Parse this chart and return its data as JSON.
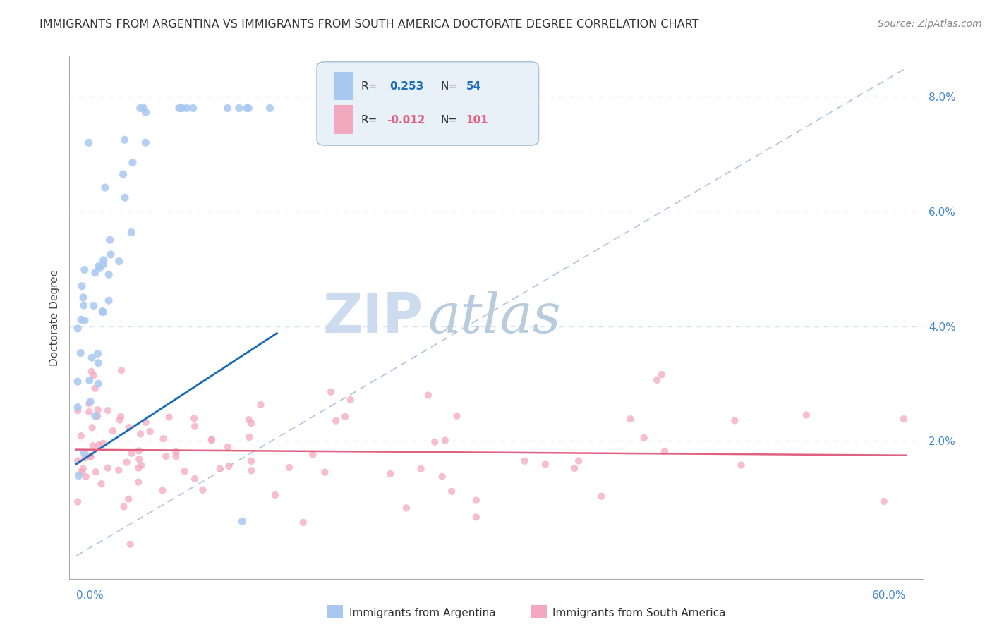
{
  "title": "IMMIGRANTS FROM ARGENTINA VS IMMIGRANTS FROM SOUTH AMERICA DOCTORATE DEGREE CORRELATION CHART",
  "source": "Source: ZipAtlas.com",
  "ylabel": "Doctorate Degree",
  "y_tick_labels": [
    "2.0%",
    "4.0%",
    "6.0%",
    "8.0%"
  ],
  "y_tick_values": [
    0.02,
    0.04,
    0.06,
    0.08
  ],
  "xlim": [
    0.0,
    0.6
  ],
  "ylim": [
    0.0,
    0.085
  ],
  "series1_label": "Immigrants from Argentina",
  "series2_label": "Immigrants from South America",
  "series1_color": "#a8c8f0",
  "series2_color": "#f4a8c0",
  "trend1_color": "#1a6bb5",
  "trend2_color": "#e06080",
  "diag_color": "#b0c4de",
  "background_color": "#ffffff",
  "grid_color": "#d8e4f0",
  "watermark_ZIP": "ZIP",
  "watermark_atlas": "atlas",
  "watermark_color_ZIP": "#c8d8ee",
  "watermark_color_atlas": "#b0c8e8",
  "legend_box_color": "#e8f0f8",
  "legend_border_color": "#b0c4d8"
}
